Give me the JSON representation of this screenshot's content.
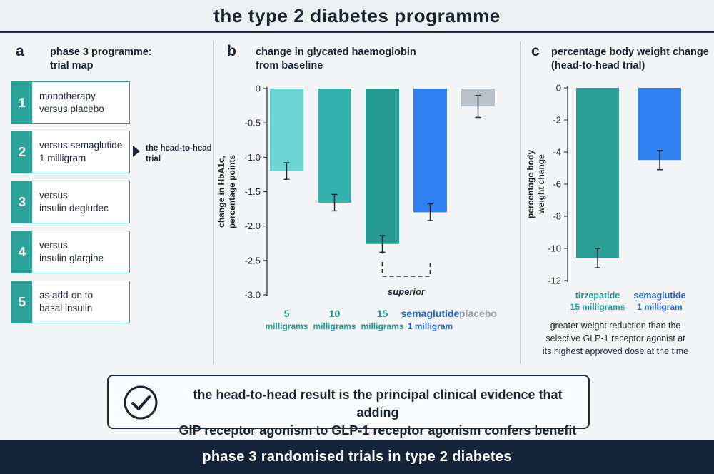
{
  "title": "the type 2 diabetes programme",
  "footer": "phase 3  randomised trials in type 2 diabetes",
  "panel_a": {
    "letter": "a",
    "heading": [
      "phase 3 programme:",
      "trial map"
    ],
    "trials": [
      {
        "num": "1",
        "label": [
          "monotherapy",
          "versus placebo"
        ]
      },
      {
        "num": "2",
        "label": [
          "versus semaglutide",
          "1 milligram"
        ]
      },
      {
        "num": "3",
        "label": [
          "versus",
          "insulin degludec"
        ]
      },
      {
        "num": "4",
        "label": [
          "versus",
          "insulin glargine"
        ]
      },
      {
        "num": "5",
        "label": [
          "as add-on to",
          "basal insulin"
        ]
      }
    ],
    "head_to_head_label": [
      "the head-to-head",
      "trial"
    ]
  },
  "panel_b": {
    "letter": "b",
    "heading": [
      "change in glycated haemoglobin",
      "from baseline"
    ],
    "bracket_label": "superior"
  },
  "panel_c": {
    "letter": "c",
    "heading": [
      "percentage body weight change",
      "(head-to-head trial)"
    ],
    "note": [
      "greater weight reduction than the",
      "selective GLP-1 receptor agonist at",
      "its highest approved dose at the time"
    ]
  },
  "conclusion": {
    "icon": "check-circle-icon",
    "text": [
      "the head-to-head result is the principal clinical evidence that adding",
      "GIP receptor agonism to GLP-1 receptor agonism confers benefit"
    ]
  },
  "chart_data": [
    {
      "type": "bar",
      "ylabel": [
        "change in HbA1c,",
        "percentage points"
      ],
      "ylim": [
        -3.0,
        0
      ],
      "yticks": [
        0,
        -0.5,
        -1.0,
        -1.5,
        -2.0,
        -2.5,
        -3.0
      ],
      "ytick_labels": [
        "0",
        "-0.5",
        "-1.0",
        "-1.5",
        "-2.0",
        "-2.5",
        "-3.0"
      ],
      "categories": [
        {
          "line1": "5",
          "line2": "milligrams"
        },
        {
          "line1": "10",
          "line2": "milligrams"
        },
        {
          "line1": "15",
          "line2": "milligrams"
        },
        {
          "line1": "semaglutide",
          "line2": "1 milligram"
        },
        {
          "line1": "placebo",
          "line2": ""
        }
      ],
      "values": [
        -1.2,
        -1.66,
        -2.26,
        -1.8,
        -0.26
      ],
      "errors": [
        0.12,
        0.12,
        0.12,
        0.12,
        0.16
      ],
      "colors": [
        "#6dd3d3",
        "#34b3ae",
        "#269a92",
        "#2f7ff0",
        "#b6c1c9"
      ],
      "label_colors": [
        "#1f9a8f",
        "#1f9a8f",
        "#1f9a8f",
        "#2264c7",
        "#9aa4ad"
      ],
      "grid": false
    },
    {
      "type": "bar",
      "ylabel": [
        "percentage body",
        "weight change"
      ],
      "ylim": [
        -12,
        0
      ],
      "yticks": [
        0,
        -2,
        -4,
        -6,
        -8,
        -10,
        -12
      ],
      "ytick_labels": [
        "0",
        "-2",
        "-4",
        "-6",
        "-8",
        "-10",
        "-12"
      ],
      "categories": [
        {
          "line1": "tirzepatide",
          "line2": "15 milligrams"
        },
        {
          "line1": "semaglutide",
          "line2": "1 milligram"
        }
      ],
      "values": [
        -10.6,
        -4.5
      ],
      "errors": [
        0.6,
        0.6
      ],
      "colors": [
        "#2a9d94",
        "#2f7ff0"
      ],
      "label_colors": [
        "#1f9a8f",
        "#2264c7"
      ],
      "grid": false
    }
  ]
}
